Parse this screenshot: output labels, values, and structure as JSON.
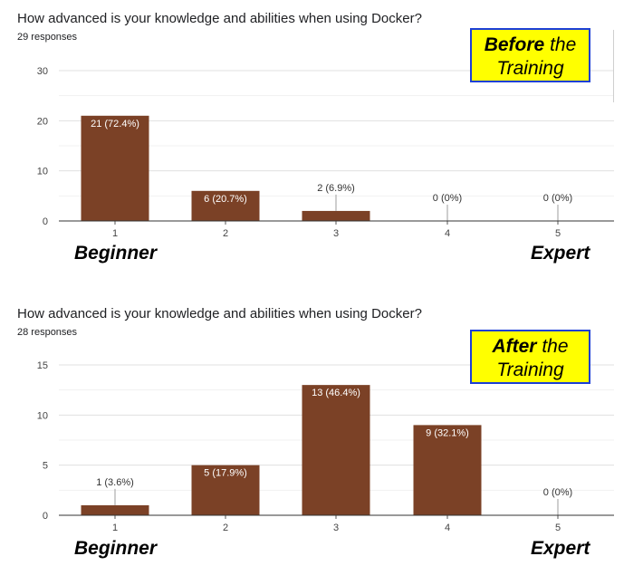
{
  "chart_data": [
    {
      "type": "bar",
      "title": "How advanced is your knowledge and abilities when using Docker?",
      "subtitle": "29 responses",
      "categories": [
        "1",
        "2",
        "3",
        "4",
        "5"
      ],
      "values": [
        21,
        6,
        2,
        0,
        0
      ],
      "data_labels": [
        "21 (72.4%)",
        "6 (20.7%)",
        "2 (6.9%)",
        "0 (0%)",
        "0 (0%)"
      ],
      "ylim": [
        0,
        30
      ],
      "yticks": [
        0,
        10,
        20,
        30
      ],
      "bar_color": "#7b4126",
      "callout": {
        "bold": "Before",
        "rest": "the",
        "line2": "Training"
      },
      "scale_labels": {
        "low": "Beginner",
        "high": "Expert"
      }
    },
    {
      "type": "bar",
      "title": "How advanced is your knowledge and abilities when using Docker?",
      "subtitle": "28 responses",
      "categories": [
        "1",
        "2",
        "3",
        "4",
        "5"
      ],
      "values": [
        1,
        5,
        13,
        9,
        0
      ],
      "data_labels": [
        "1 (3.6%)",
        "5 (17.9%)",
        "13 (46.4%)",
        "9 (32.1%)",
        "0 (0%)"
      ],
      "ylim": [
        0,
        15
      ],
      "yticks": [
        0,
        5,
        10,
        15
      ],
      "bar_color": "#7b4126",
      "callout": {
        "bold": "After",
        "rest": "the",
        "line2": "Training"
      },
      "scale_labels": {
        "low": "Beginner",
        "high": "Expert"
      }
    }
  ],
  "colors": {
    "callout_bg": "#ffff00",
    "callout_border": "#1c3fd6",
    "grid": "#e0e0e0"
  }
}
